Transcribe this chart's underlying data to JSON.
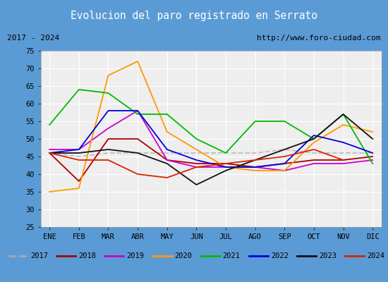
{
  "title": "Evolucion del paro registrado en Serrato",
  "subtitle_left": "2017 - 2024",
  "subtitle_right": "http://www.foro-ciudad.com",
  "months": [
    "ENE",
    "FEB",
    "MAR",
    "ABR",
    "MAY",
    "JUN",
    "JUL",
    "AGO",
    "SEP",
    "OCT",
    "NOV",
    "DIC"
  ],
  "ylim": [
    25,
    75
  ],
  "yticks": [
    25,
    30,
    35,
    40,
    45,
    50,
    55,
    60,
    65,
    70,
    75
  ],
  "series": {
    "2017": {
      "color": "#aaaaaa",
      "values": [
        46,
        45,
        46,
        46,
        46,
        46,
        46,
        46,
        47,
        46,
        46,
        46
      ]
    },
    "2018": {
      "color": "#aa0000",
      "values": [
        46,
        38,
        50,
        50,
        44,
        43,
        43,
        42,
        43,
        44,
        44,
        45
      ]
    },
    "2019": {
      "color": "#cc00cc",
      "values": [
        47,
        47,
        53,
        58,
        44,
        42,
        42,
        42,
        41,
        43,
        43,
        44
      ]
    },
    "2020": {
      "color": "#ff9900",
      "values": [
        35,
        36,
        68,
        72,
        52,
        47,
        42,
        41,
        41,
        49,
        54,
        52
      ]
    },
    "2021": {
      "color": "#00bb00",
      "values": [
        54,
        64,
        63,
        57,
        57,
        50,
        46,
        55,
        55,
        50,
        57,
        43
      ]
    },
    "2022": {
      "color": "#0000dd",
      "values": [
        46,
        47,
        58,
        58,
        47,
        44,
        42,
        42,
        43,
        51,
        49,
        46
      ]
    },
    "2023": {
      "color": "#111111",
      "values": [
        46,
        46,
        47,
        46,
        43,
        37,
        41,
        44,
        47,
        50,
        57,
        50
      ]
    },
    "2024": {
      "color": "#dd2200",
      "values": [
        46,
        44,
        44,
        40,
        39,
        42,
        43,
        44,
        45,
        47,
        44,
        null
      ]
    }
  },
  "title_bg_color": "#5b9bd5",
  "title_font_color": "white",
  "plot_bg_color": "#eeeeee",
  "grid_color": "#ffffff",
  "border_color": "#5b9bd5"
}
